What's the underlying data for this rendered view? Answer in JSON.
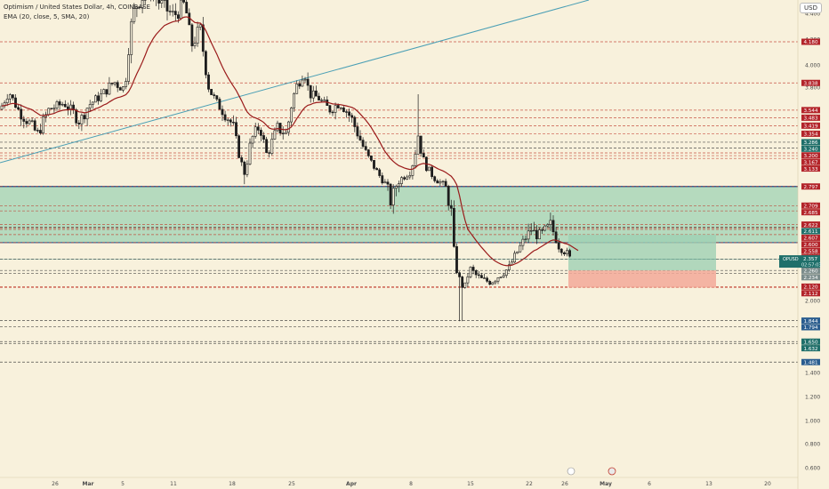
{
  "legend": {
    "symbol": "Optimism / United States Dollar, 4h, COINBASE",
    "indicator": "EMA (20, close, 5, SMA, 20)"
  },
  "currency_label": "USD",
  "colors": {
    "background": "#f8f1dc",
    "up": "#1d1d1d",
    "down": "#1d1d1d",
    "ema": "#9a1a1a",
    "trendline": "#4a9fb5",
    "zone": "#9fd1b4",
    "zone_border": "#1a4a8a",
    "profit": "#9fd1b4",
    "loss": "#f3a999",
    "dash_red": "#c0392b",
    "dash_dark": "#333333",
    "badge_red": "#b3242a",
    "badge_teal": "#1f6f6a",
    "badge_blue": "#2a5d8f",
    "badge_gray": "#7b8c8b"
  },
  "chart_data": {
    "type": "candlestick",
    "symbol": "OPUSD",
    "y_axis_ticks": [
      "4.400",
      "4.200",
      "4.000",
      "3.800",
      "2.400",
      "2.200",
      "2.000",
      "1.600",
      "1.400",
      "1.200",
      "1.000",
      "0.800",
      "0.600"
    ],
    "x_axis_ticks": [
      "26",
      "Mar",
      "5",
      "11",
      "18",
      "25",
      "Apr",
      "8",
      "15",
      "22",
      "26",
      "May",
      "6",
      "13",
      "20"
    ],
    "price_levels": [
      {
        "label": "4.180",
        "value": 4.18,
        "style": "red"
      },
      {
        "label": "3.838",
        "value": 3.838,
        "style": "red"
      },
      {
        "label": "3.544",
        "value": 3.544,
        "style": "red"
      },
      {
        "label": "3.483",
        "value": 3.483,
        "style": "red"
      },
      {
        "label": "3.419",
        "value": 3.419,
        "style": "red"
      },
      {
        "label": "3.354",
        "value": 3.354,
        "style": "red"
      },
      {
        "label": "3.286",
        "value": 3.286,
        "style": "teal"
      },
      {
        "label": "3.240",
        "value": 3.24,
        "style": "teal"
      },
      {
        "label": "3.200",
        "value": 3.2,
        "style": "red"
      },
      {
        "label": "3.167",
        "value": 3.167,
        "style": "red"
      },
      {
        "label": "3.133",
        "value": 3.133,
        "style": "red"
      },
      {
        "label": "2.797",
        "value": 2.797,
        "style": "red"
      },
      {
        "label": "2.709",
        "value": 2.709,
        "style": "red"
      },
      {
        "label": "2.685",
        "value": 2.685,
        "style": "red"
      },
      {
        "label": "2.622",
        "value": 2.622,
        "style": "red"
      },
      {
        "label": "2.611",
        "value": 2.611,
        "style": "teal"
      },
      {
        "label": "2.607",
        "value": 2.607,
        "style": "red"
      },
      {
        "label": "2.600",
        "value": 2.6,
        "style": "red"
      },
      {
        "label": "2.558",
        "value": 2.558,
        "style": "red"
      },
      {
        "label": "2.494",
        "value": 2.494,
        "style": "red"
      },
      {
        "label": "2.357",
        "value": 2.357,
        "style": "teal"
      },
      {
        "label": "2.260",
        "value": 2.26,
        "style": "gray"
      },
      {
        "label": "2.234",
        "value": 2.234,
        "style": "gray"
      },
      {
        "label": "2.120",
        "value": 2.12,
        "style": "red"
      },
      {
        "label": "2.112",
        "value": 2.112,
        "style": "red"
      },
      {
        "label": "1.844",
        "value": 1.844,
        "style": "blue"
      },
      {
        "label": "1.794",
        "value": 1.794,
        "style": "blue"
      },
      {
        "label": "1.650",
        "value": 1.65,
        "style": "teal"
      },
      {
        "label": "1.632",
        "value": 1.632,
        "style": "teal"
      },
      {
        "label": "1.481",
        "value": 1.481,
        "style": "blue"
      }
    ],
    "current_price": {
      "symbol_tag": "OPUSD",
      "value": "2.357",
      "countdown": "02:57:03"
    },
    "position": {
      "entry": 2.26,
      "target": 2.558,
      "stop": 2.112
    },
    "zone": {
      "top": 2.797,
      "bottom": 2.494
    },
    "ema_period": 20
  }
}
